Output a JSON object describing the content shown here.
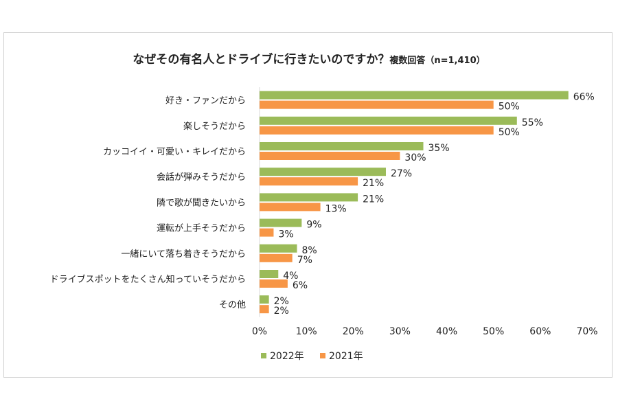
{
  "chart_data": {
    "type": "bar",
    "orientation": "horizontal",
    "title": "なぜその有名人とドライブに行きたいのですか？",
    "subtitle": "複数回答（n=1,410）",
    "categories": [
      "好き・ファンだから",
      "楽しそうだから",
      "カッコイイ・可愛い・キレイだから",
      "会話が弾みそうだから",
      "隣で歌が聞きたいから",
      "運転が上手そうだから",
      "一緒にいて落ち着きそうだから",
      "ドライブスポットをたくさん知っていそうだから",
      "その他"
    ],
    "series": [
      {
        "name": "2022年",
        "color": "#9bbb59",
        "values": [
          66,
          55,
          35,
          27,
          21,
          9,
          8,
          4,
          2
        ]
      },
      {
        "name": "2021年",
        "color": "#f79646",
        "values": [
          50,
          50,
          30,
          21,
          13,
          3,
          7,
          6,
          2
        ]
      }
    ],
    "xlim": [
      0,
      70
    ],
    "xticks": [
      "0%",
      "10%",
      "20%",
      "30%",
      "40%",
      "50%",
      "60%",
      "70%"
    ],
    "value_suffix": "%",
    "grid": false,
    "legend_position": "bottom"
  }
}
